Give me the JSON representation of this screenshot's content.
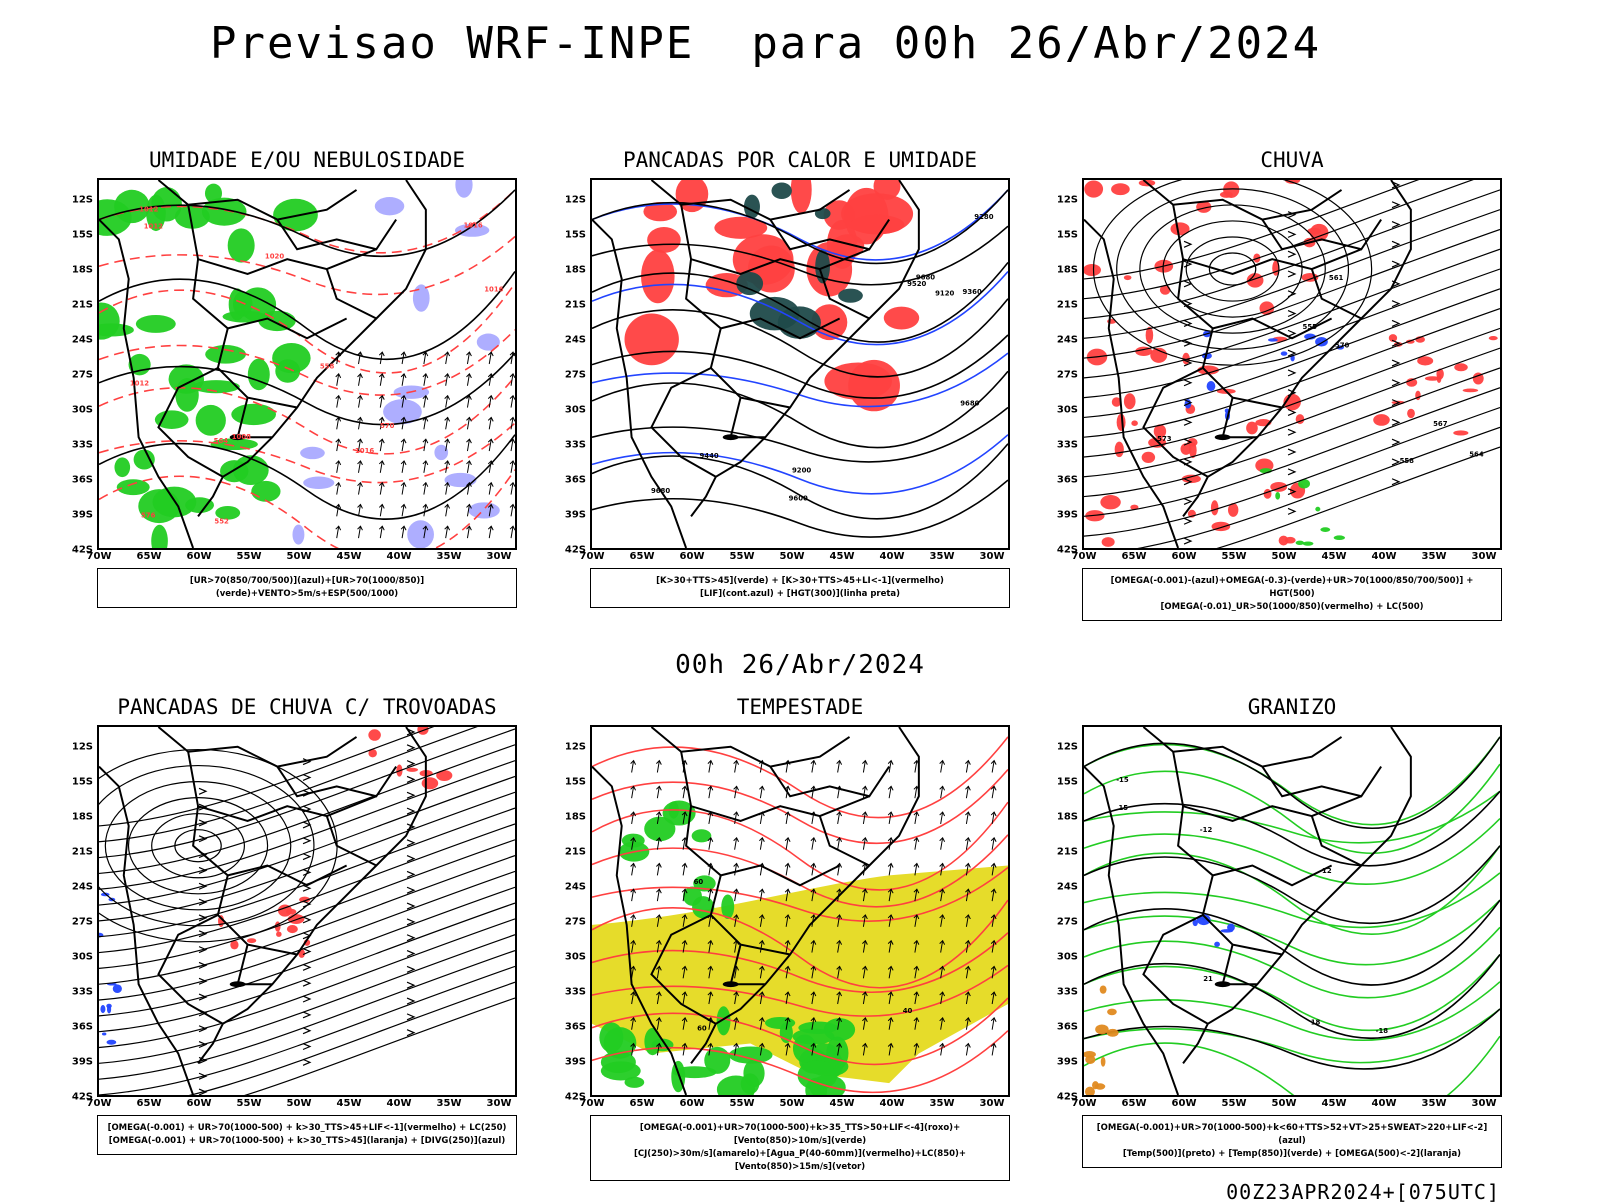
{
  "title": "Previsao WRF-INPE  para 00h 26/Abr/2024",
  "subtitle": "00h 26/Abr/2024",
  "footer": "00Z23APR2024+[075UTC]",
  "axes": {
    "lat_labels": [
      "12S",
      "15S",
      "18S",
      "21S",
      "24S",
      "27S",
      "30S",
      "33S",
      "36S",
      "39S",
      "42S"
    ],
    "lon_labels": [
      "70W",
      "65W",
      "60W",
      "55W",
      "50W",
      "45W",
      "40W",
      "35W",
      "30W"
    ]
  },
  "colors": {
    "green": "#22cc22",
    "red": "#ff4040",
    "blue": "#2244ff",
    "lavender": "#aaaaff",
    "darkteal": "#1f4a4a",
    "yellow": "#e6dc2a",
    "orange": "#e08a20",
    "black": "#000000"
  },
  "panels": [
    {
      "id": "umidade",
      "title": "UMIDADE E/OU NEBULOSIDADE",
      "legend": [
        "[UR>70(850/700/500)](azul)+[UR>70(1000/850)](verde)+VENTO>5m/s+ESP(500/1000)"
      ],
      "contour_labels": [
        "1012",
        "1012",
        "1012",
        "1016",
        "1016",
        "1016",
        "1020",
        "1008",
        "576",
        "570",
        "564",
        "558",
        "552"
      ]
    },
    {
      "id": "pancadas-calor",
      "title": "PANCADAS POR CALOR E UMIDADE",
      "legend": [
        "[K>30+TTS>45](verde)  +  [K>30+TTS>45+LI<-1](vermelho)",
        "[LIF](cont.azul)  +  [HGT(300)](linha preta)"
      ],
      "contour_labels": [
        "9680",
        "9680",
        "9680",
        "9600",
        "9520",
        "9440",
        "9360",
        "9280",
        "9200",
        "9120"
      ]
    },
    {
      "id": "chuva",
      "title": "CHUVA",
      "legend": [
        "[OMEGA(-0.001)-(azul)+OMEGA(-0.3)-(verde)+UR>70(1000/850/700/500)]  +  HGT(500)",
        "[OMEGA(-0.01)_UR>50(1000/850)(vermelho)  +  LC(500)"
      ],
      "contour_labels": [
        "573",
        "570",
        "567",
        "564",
        "561",
        "558",
        "555"
      ]
    },
    {
      "id": "trovoadas",
      "title": "PANCADAS DE CHUVA C/ TROVOADAS",
      "legend": [
        "[OMEGA(-0.001)  +  UR>70(1000-500)  +  k>30_TTS>45+LIF<-1](vermelho)  +  LC(250)",
        "[OMEGA(-0.001)  +  UR>70(1000-500)  +  k>30_TTS>45](laranja)  +  [DIVG(250)](azul)"
      ],
      "contour_labels": []
    },
    {
      "id": "tempestade",
      "title": "TEMPESTADE",
      "legend": [
        "[OMEGA(-0.001)+UR>70(1000-500)+k>35_TTS>50+LIF<-4](roxo)+[Vento(850)>10m/s](verde)",
        "[CJ(250)>30m/s](amarelo)+[Agua_P(40-60mm)](vermelho)+LC(850)+[Vento(850)>15m/s](vetor)"
      ],
      "contour_labels": [
        "60",
        "60",
        "40"
      ]
    },
    {
      "id": "granizo",
      "title": "GRANIZO",
      "legend": [
        "[OMEGA(-0.001)+UR>70(1000-500)+k<60+TTS>52+VT>25+SWEAT>220+LIF<-2](azul)",
        "[Temp(500)](preto)  +  [Temp(850)](verde)  +  [OMEGA(500)<-2](laranja)"
      ],
      "contour_labels": [
        "-12",
        "-15",
        "-18",
        "12",
        "15",
        "18",
        "21"
      ]
    }
  ]
}
